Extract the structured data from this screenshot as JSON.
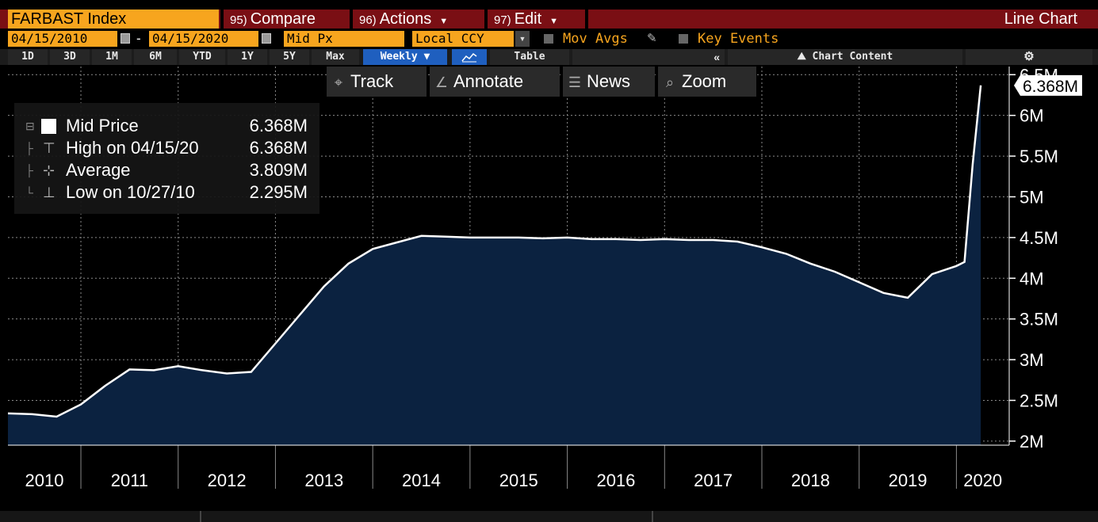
{
  "header": {
    "ticker": "FARBAST Index",
    "compare_num": "95)",
    "compare": "Compare",
    "actions_num": "96)",
    "actions": "Actions",
    "edit_num": "97)",
    "edit": "Edit",
    "chart_type": "Line Chart"
  },
  "options": {
    "start_date": "04/15/2010",
    "dash": "-",
    "end_date": "04/15/2020",
    "price_field": "Mid Px",
    "currency": "Local CCY",
    "mov_avgs": "Mov Avgs",
    "key_events": "Key Events"
  },
  "ranges": [
    "1D",
    "3D",
    "1M",
    "6M",
    "YTD",
    "1Y",
    "5Y",
    "Max"
  ],
  "frequency": "Weekly",
  "table_label": "Table",
  "collapse_glyph": "«",
  "chart_content": "Chart Content",
  "tools": {
    "track": "Track",
    "annotate": "Annotate",
    "news": "News",
    "zoom": "Zoom"
  },
  "legend": {
    "mid_label": "Mid Price",
    "mid_value": "6.368M",
    "high_label": "High on 04/15/20",
    "high_value": "6.368M",
    "avg_label": "Average",
    "avg_value": "3.809M",
    "low_label": "Low on 10/27/10",
    "low_value": "2.295M"
  },
  "last_value_tag": "6.368M",
  "colors": {
    "accent": "#f7a51e",
    "header_bar": "#7a0f14",
    "area_fill": "#0b2240",
    "line": "#ffffff",
    "active": "#1f5fbf"
  },
  "icons": [
    "track-icon",
    "annotate-icon",
    "news-icon",
    "zoom-icon",
    "gear-icon",
    "chart-content-icon",
    "calendar-icon",
    "pencil-icon"
  ],
  "chart_data": {
    "type": "area",
    "x": [
      "2010-04",
      "2010-07",
      "2010-10",
      "2011-01",
      "2011-04",
      "2011-07",
      "2011-10",
      "2012-01",
      "2012-04",
      "2012-07",
      "2012-10",
      "2013-01",
      "2013-04",
      "2013-07",
      "2013-10",
      "2014-01",
      "2014-04",
      "2014-07",
      "2014-10",
      "2015-01",
      "2015-04",
      "2015-07",
      "2015-10",
      "2016-01",
      "2016-04",
      "2016-07",
      "2016-10",
      "2017-01",
      "2017-04",
      "2017-07",
      "2017-10",
      "2018-01",
      "2018-04",
      "2018-07",
      "2018-10",
      "2019-01",
      "2019-04",
      "2019-07",
      "2019-10",
      "2020-01",
      "2020-02",
      "2020-03",
      "2020-04"
    ],
    "values": [
      2.34,
      2.33,
      2.3,
      2.45,
      2.68,
      2.88,
      2.87,
      2.92,
      2.87,
      2.83,
      2.85,
      3.2,
      3.55,
      3.9,
      4.18,
      4.36,
      4.44,
      4.52,
      4.51,
      4.5,
      4.5,
      4.5,
      4.49,
      4.5,
      4.48,
      4.48,
      4.47,
      4.48,
      4.47,
      4.47,
      4.45,
      4.38,
      4.3,
      4.18,
      4.08,
      3.95,
      3.82,
      3.76,
      4.05,
      4.15,
      4.2,
      5.4,
      6.368
    ],
    "x_ticks": [
      "2010",
      "2011",
      "2012",
      "2013",
      "2014",
      "2015",
      "2016",
      "2017",
      "2018",
      "2019",
      "2020"
    ],
    "y_ticks": [
      "2M",
      "2.5M",
      "3M",
      "3.5M",
      "4M",
      "4.5M",
      "5M",
      "5.5M",
      "6M",
      "6.5M"
    ],
    "y_tick_values": [
      2,
      2.5,
      3,
      3.5,
      4,
      4.5,
      5,
      5.5,
      6,
      6.5
    ],
    "ylim": [
      1.95,
      6.6
    ],
    "unit": "M",
    "grid": true
  }
}
